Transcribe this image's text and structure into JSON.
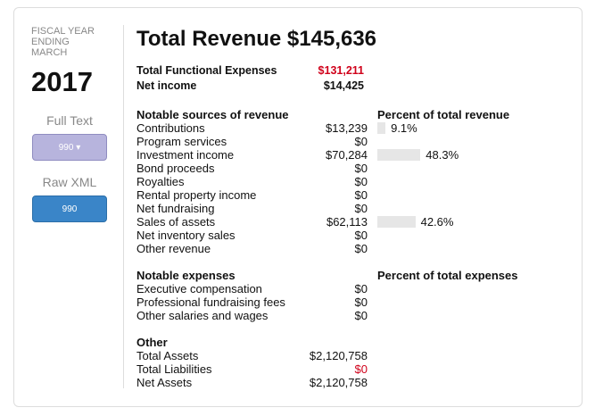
{
  "sidebar": {
    "fiscal_label": "FISCAL YEAR ENDING MARCH",
    "year": "2017",
    "full_text": "Full Text",
    "full_text_button": "990",
    "raw_xml": "Raw XML",
    "raw_xml_button": "990"
  },
  "header": {
    "title": "Total Revenue $145,636",
    "summary": [
      {
        "label": "Total Functional Expenses",
        "value": "$131,211",
        "color": "#d0021b"
      },
      {
        "label": "Net income",
        "value": "$14,425"
      }
    ]
  },
  "sections": [
    {
      "title": "Notable sources of revenue",
      "percent_title": "Percent of total revenue",
      "rows": [
        {
          "label": "Contributions",
          "amount": "$13,239",
          "percent": {
            "value": 9.1,
            "label": "9.1%"
          }
        },
        {
          "label": "Program services",
          "amount": "$0"
        },
        {
          "label": "Investment income",
          "amount": "$70,284",
          "percent": {
            "value": 48.3,
            "label": "48.3%"
          }
        },
        {
          "label": "Bond proceeds",
          "amount": "$0"
        },
        {
          "label": "Royalties",
          "amount": "$0"
        },
        {
          "label": "Rental property income",
          "amount": "$0"
        },
        {
          "label": "Net fundraising",
          "amount": "$0"
        },
        {
          "label": "Sales of assets",
          "amount": "$62,113",
          "percent": {
            "value": 42.6,
            "label": "42.6%"
          }
        },
        {
          "label": "Net inventory sales",
          "amount": "$0"
        },
        {
          "label": "Other revenue",
          "amount": "$0"
        }
      ]
    },
    {
      "title": "Notable expenses",
      "percent_title": "Percent of total expenses",
      "rows": [
        {
          "label": "Executive compensation",
          "amount": "$0"
        },
        {
          "label": "Professional fundraising fees",
          "amount": "$0"
        },
        {
          "label": "Other salaries and wages",
          "amount": "$0"
        }
      ]
    },
    {
      "title": "Other",
      "rows": [
        {
          "label": "Total Assets",
          "amount": "$2,120,758"
        },
        {
          "label": "Total Liabilities",
          "amount": "$0",
          "color": "#d0021b"
        },
        {
          "label": "Net Assets",
          "amount": "$2,120,758"
        }
      ]
    }
  ]
}
